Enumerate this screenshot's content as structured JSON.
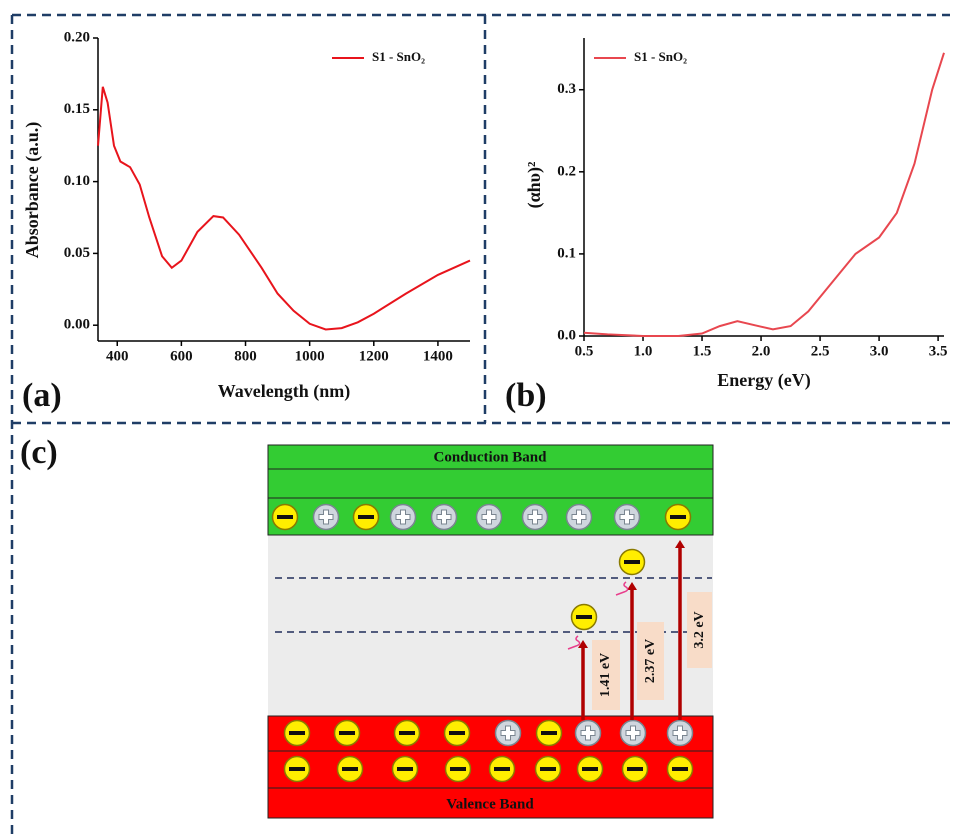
{
  "chart_data": [
    {
      "type": "line",
      "label": "(a)",
      "xlabel": "Wavelength (nm)",
      "ylabel": "Absorbance (a.u.)",
      "x": [
        340,
        355,
        370,
        390,
        410,
        440,
        470,
        500,
        540,
        570,
        600,
        650,
        700,
        730,
        780,
        850,
        900,
        950,
        1000,
        1050,
        1100,
        1150,
        1200,
        1300,
        1400,
        1500
      ],
      "series": [
        {
          "name": "S1 - SnO₂",
          "color": "#e8141c",
          "values": [
            0.125,
            0.166,
            0.155,
            0.125,
            0.114,
            0.11,
            0.098,
            0.075,
            0.048,
            0.04,
            0.045,
            0.065,
            0.076,
            0.075,
            0.063,
            0.04,
            0.022,
            0.01,
            0.001,
            -0.003,
            -0.002,
            0.002,
            0.008,
            0.022,
            0.035,
            0.045
          ]
        }
      ],
      "xlim": [
        340,
        1500
      ],
      "ylim": [
        -0.011,
        0.2
      ],
      "xticks": [
        400,
        600,
        800,
        1000,
        1200,
        1400
      ],
      "yticks": [
        {
          "value": 0,
          "label": "0.00"
        },
        0.05,
        {
          "value": 0.1,
          "label": "0.10"
        },
        0.15,
        {
          "value": 0.2,
          "label": "0.20"
        }
      ]
    },
    {
      "type": "line",
      "label": "(b)",
      "xlabel": "Energy (eV)",
      "ylabel": "(αhυ)²",
      "x": [
        0.5,
        0.7,
        1.0,
        1.3,
        1.5,
        1.65,
        1.8,
        1.95,
        2.1,
        2.25,
        2.4,
        2.6,
        2.8,
        3.0,
        3.15,
        3.3,
        3.45,
        3.55
      ],
      "series": [
        {
          "name": "S1 - SnO₂",
          "color": "#e8474f",
          "values": [
            0.004,
            0.002,
            0.0,
            0.0,
            0.003,
            0.012,
            0.018,
            0.013,
            0.008,
            0.012,
            0.03,
            0.065,
            0.1,
            0.12,
            0.15,
            0.21,
            0.3,
            0.345
          ]
        }
      ],
      "xlim": [
        0.5,
        3.55
      ],
      "ylim": [
        0,
        0.363
      ],
      "xticks": [
        0.5,
        {
          "value": 1,
          "label": "1.0"
        },
        1.5,
        {
          "value": 2,
          "label": "2.0"
        },
        2.5,
        {
          "value": 3,
          "label": "3.0"
        },
        3.5
      ],
      "yticks": [
        {
          "value": 0,
          "label": "0.0"
        },
        0.1,
        0.2,
        0.3
      ]
    }
  ],
  "diagram": {
    "label": "(c)",
    "conduction_band": "Conduction Band",
    "valence_band": "Valence Band",
    "transitions": [
      "1.41 eV",
      "2.37 eV",
      "3.2 eV"
    ]
  }
}
